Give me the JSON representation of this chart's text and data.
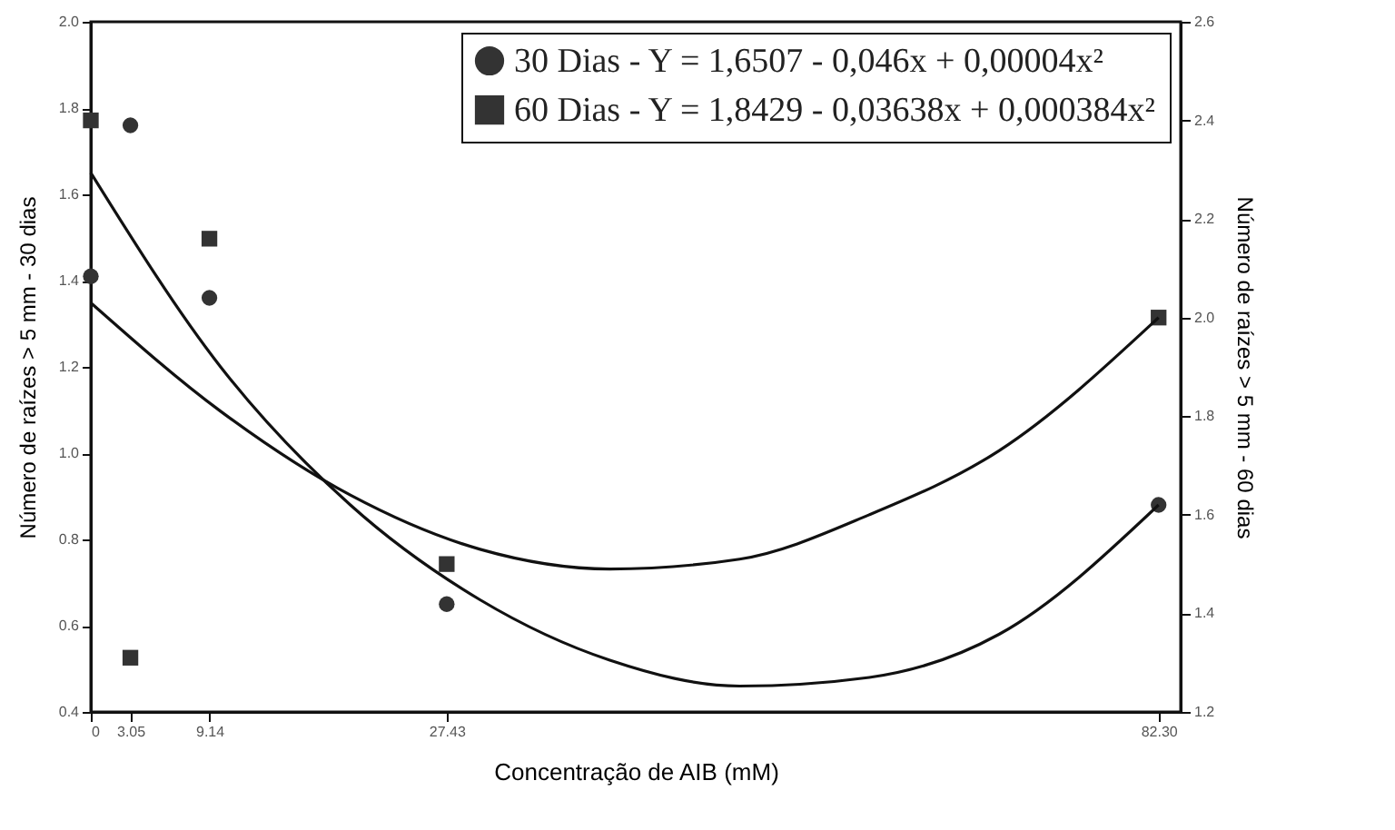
{
  "chart_data": {
    "type": "scatter",
    "xlabel": "Concentração de AIB (mM)",
    "ylabel": "Número de raízes > 5 mm - 30 dias",
    "y2label": "Número de raízes > 5 mm - 60 dias",
    "xlim": [
      0,
      84
    ],
    "xticks": [
      0,
      3.05,
      9.14,
      27.43,
      {
        "value": 82.3,
        "label": "82.30"
      }
    ],
    "ylim": [
      0.4,
      2.0
    ],
    "yticks": [
      {
        "value": 0.4,
        "label": "0.4"
      },
      {
        "value": 0.6,
        "label": "0.6"
      },
      {
        "value": 0.8,
        "label": "0.8"
      },
      {
        "value": 1.0,
        "label": "1.0"
      },
      {
        "value": 1.2,
        "label": "1.2"
      },
      {
        "value": 1.4,
        "label": "1.4"
      },
      {
        "value": 1.6,
        "label": "1.6"
      },
      {
        "value": 1.8,
        "label": "1.8"
      },
      {
        "value": 2.0,
        "label": "2.0"
      }
    ],
    "y2lim": [
      1.2,
      2.6
    ],
    "y2ticks": [
      {
        "value": 1.2,
        "label": "1.2"
      },
      {
        "value": 1.4,
        "label": "1.4"
      },
      {
        "value": 1.6,
        "label": "1.6"
      },
      {
        "value": 1.8,
        "label": "1.8"
      },
      {
        "value": 2.0,
        "label": "2.0"
      },
      {
        "value": 2.2,
        "label": "2.2"
      },
      {
        "value": 2.4,
        "label": "2.4"
      },
      {
        "value": 2.6,
        "label": "2.6"
      }
    ],
    "legend": "top right",
    "series": [
      {
        "name": "30 Dias - Y = 1,6507 - 0,046x + 0,00004x²",
        "color": "#333333",
        "marker": "circle",
        "x": [
          0,
          3.05,
          9.14,
          27.43,
          82.3
        ],
        "values": [
          1.41,
          1.76,
          1.36,
          0.65,
          0.88
        ]
      },
      {
        "name": "60 Dias - Y = 1,8429 - 0,03638x + 0,000384x²",
        "color": "#333333",
        "marker": "square",
        "axis": "y2",
        "x": [
          0,
          3.05,
          9.14,
          27.43,
          82.3
        ],
        "values": [
          2.4,
          1.31,
          2.16,
          1.5,
          2.0
        ]
      },
      {
        "type": "line",
        "color": "#111111",
        "marker": "none",
        "x": [
          0,
          10,
          20,
          30,
          40,
          50,
          60,
          70,
          82.3
        ],
        "values": [
          1.65,
          1.2,
          0.88,
          0.66,
          0.52,
          0.46,
          0.48,
          0.58,
          0.88
        ]
      },
      {
        "type": "line",
        "color": "#111111",
        "marker": "none",
        "axis": "y2",
        "x": [
          0,
          10,
          20,
          30,
          40,
          50,
          60,
          70,
          82.3
        ],
        "values": [
          2.03,
          1.81,
          1.64,
          1.53,
          1.49,
          1.51,
          1.6,
          1.73,
          2.0
        ]
      }
    ]
  }
}
